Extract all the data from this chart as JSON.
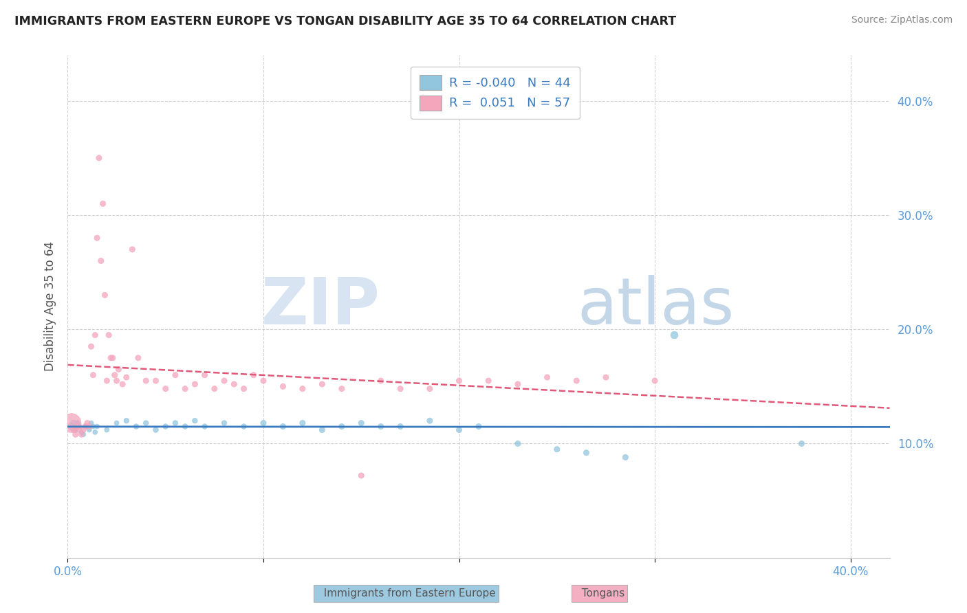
{
  "title": "IMMIGRANTS FROM EASTERN EUROPE VS TONGAN DISABILITY AGE 35 TO 64 CORRELATION CHART",
  "source": "Source: ZipAtlas.com",
  "ylabel": "Disability Age 35 to 64",
  "legend_label1": "Immigrants from Eastern Europe",
  "legend_label2": "Tongans",
  "R1": -0.04,
  "N1": 44,
  "R2": 0.051,
  "N2": 57,
  "xlim": [
    0.0,
    0.42
  ],
  "ylim": [
    0.0,
    0.44
  ],
  "yticks": [
    0.1,
    0.2,
    0.3,
    0.4
  ],
  "xticks": [
    0.0,
    0.1,
    0.2,
    0.3,
    0.4
  ],
  "watermark_zip": "ZIP",
  "watermark_atlas": "atlas",
  "blue_color": "#92c5de",
  "pink_color": "#f4a6bd",
  "blue_line_color": "#3a7abf",
  "pink_line_color": "#e05878",
  "pink_line_style": "--",
  "blue_scatter": [
    [
      0.002,
      0.115
    ],
    [
      0.003,
      0.118
    ],
    [
      0.004,
      0.112
    ],
    [
      0.005,
      0.118
    ],
    [
      0.006,
      0.115
    ],
    [
      0.007,
      0.11
    ],
    [
      0.008,
      0.108
    ],
    [
      0.009,
      0.115
    ],
    [
      0.01,
      0.115
    ],
    [
      0.011,
      0.112
    ],
    [
      0.012,
      0.118
    ],
    [
      0.013,
      0.115
    ],
    [
      0.014,
      0.11
    ],
    [
      0.015,
      0.115
    ],
    [
      0.02,
      0.112
    ],
    [
      0.025,
      0.118
    ],
    [
      0.03,
      0.12
    ],
    [
      0.035,
      0.115
    ],
    [
      0.04,
      0.118
    ],
    [
      0.045,
      0.112
    ],
    [
      0.05,
      0.115
    ],
    [
      0.055,
      0.118
    ],
    [
      0.06,
      0.115
    ],
    [
      0.065,
      0.12
    ],
    [
      0.07,
      0.115
    ],
    [
      0.08,
      0.118
    ],
    [
      0.09,
      0.115
    ],
    [
      0.1,
      0.118
    ],
    [
      0.11,
      0.115
    ],
    [
      0.12,
      0.118
    ],
    [
      0.13,
      0.112
    ],
    [
      0.14,
      0.115
    ],
    [
      0.15,
      0.118
    ],
    [
      0.16,
      0.115
    ],
    [
      0.17,
      0.115
    ],
    [
      0.185,
      0.12
    ],
    [
      0.2,
      0.112
    ],
    [
      0.21,
      0.115
    ],
    [
      0.23,
      0.1
    ],
    [
      0.25,
      0.095
    ],
    [
      0.265,
      0.092
    ],
    [
      0.285,
      0.088
    ],
    [
      0.31,
      0.195
    ],
    [
      0.375,
      0.1
    ]
  ],
  "blue_sizes": [
    60,
    40,
    30,
    30,
    30,
    25,
    25,
    25,
    25,
    25,
    25,
    25,
    25,
    25,
    25,
    25,
    30,
    30,
    30,
    30,
    30,
    30,
    30,
    30,
    30,
    30,
    30,
    35,
    35,
    35,
    35,
    35,
    35,
    35,
    35,
    35,
    35,
    35,
    35,
    35,
    35,
    35,
    60,
    35
  ],
  "pink_scatter": [
    [
      0.002,
      0.118
    ],
    [
      0.003,
      0.112
    ],
    [
      0.004,
      0.108
    ],
    [
      0.005,
      0.115
    ],
    [
      0.006,
      0.112
    ],
    [
      0.007,
      0.108
    ],
    [
      0.008,
      0.112
    ],
    [
      0.009,
      0.115
    ],
    [
      0.01,
      0.118
    ],
    [
      0.011,
      0.115
    ],
    [
      0.012,
      0.185
    ],
    [
      0.013,
      0.16
    ],
    [
      0.014,
      0.195
    ],
    [
      0.015,
      0.28
    ],
    [
      0.016,
      0.35
    ],
    [
      0.017,
      0.26
    ],
    [
      0.018,
      0.31
    ],
    [
      0.019,
      0.23
    ],
    [
      0.02,
      0.155
    ],
    [
      0.021,
      0.195
    ],
    [
      0.022,
      0.175
    ],
    [
      0.023,
      0.175
    ],
    [
      0.024,
      0.16
    ],
    [
      0.025,
      0.155
    ],
    [
      0.026,
      0.165
    ],
    [
      0.028,
      0.152
    ],
    [
      0.03,
      0.158
    ],
    [
      0.033,
      0.27
    ],
    [
      0.036,
      0.175
    ],
    [
      0.04,
      0.155
    ],
    [
      0.045,
      0.155
    ],
    [
      0.05,
      0.148
    ],
    [
      0.055,
      0.16
    ],
    [
      0.06,
      0.148
    ],
    [
      0.065,
      0.152
    ],
    [
      0.07,
      0.16
    ],
    [
      0.075,
      0.148
    ],
    [
      0.08,
      0.155
    ],
    [
      0.085,
      0.152
    ],
    [
      0.09,
      0.148
    ],
    [
      0.095,
      0.16
    ],
    [
      0.1,
      0.155
    ],
    [
      0.11,
      0.15
    ],
    [
      0.12,
      0.148
    ],
    [
      0.13,
      0.152
    ],
    [
      0.14,
      0.148
    ],
    [
      0.15,
      0.072
    ],
    [
      0.16,
      0.155
    ],
    [
      0.17,
      0.148
    ],
    [
      0.185,
      0.148
    ],
    [
      0.2,
      0.155
    ],
    [
      0.215,
      0.155
    ],
    [
      0.23,
      0.152
    ],
    [
      0.245,
      0.158
    ],
    [
      0.26,
      0.155
    ],
    [
      0.275,
      0.158
    ],
    [
      0.3,
      0.155
    ]
  ],
  "pink_sizes": [
    400,
    35,
    35,
    35,
    35,
    35,
    35,
    35,
    35,
    35,
    35,
    35,
    35,
    35,
    35,
    35,
    35,
    35,
    35,
    35,
    35,
    35,
    35,
    35,
    35,
    35,
    35,
    35,
    35,
    35,
    35,
    35,
    35,
    35,
    35,
    35,
    35,
    35,
    35,
    35,
    35,
    35,
    35,
    35,
    35,
    35,
    35,
    35,
    35,
    35,
    35,
    35,
    35,
    35,
    35,
    35,
    35
  ]
}
